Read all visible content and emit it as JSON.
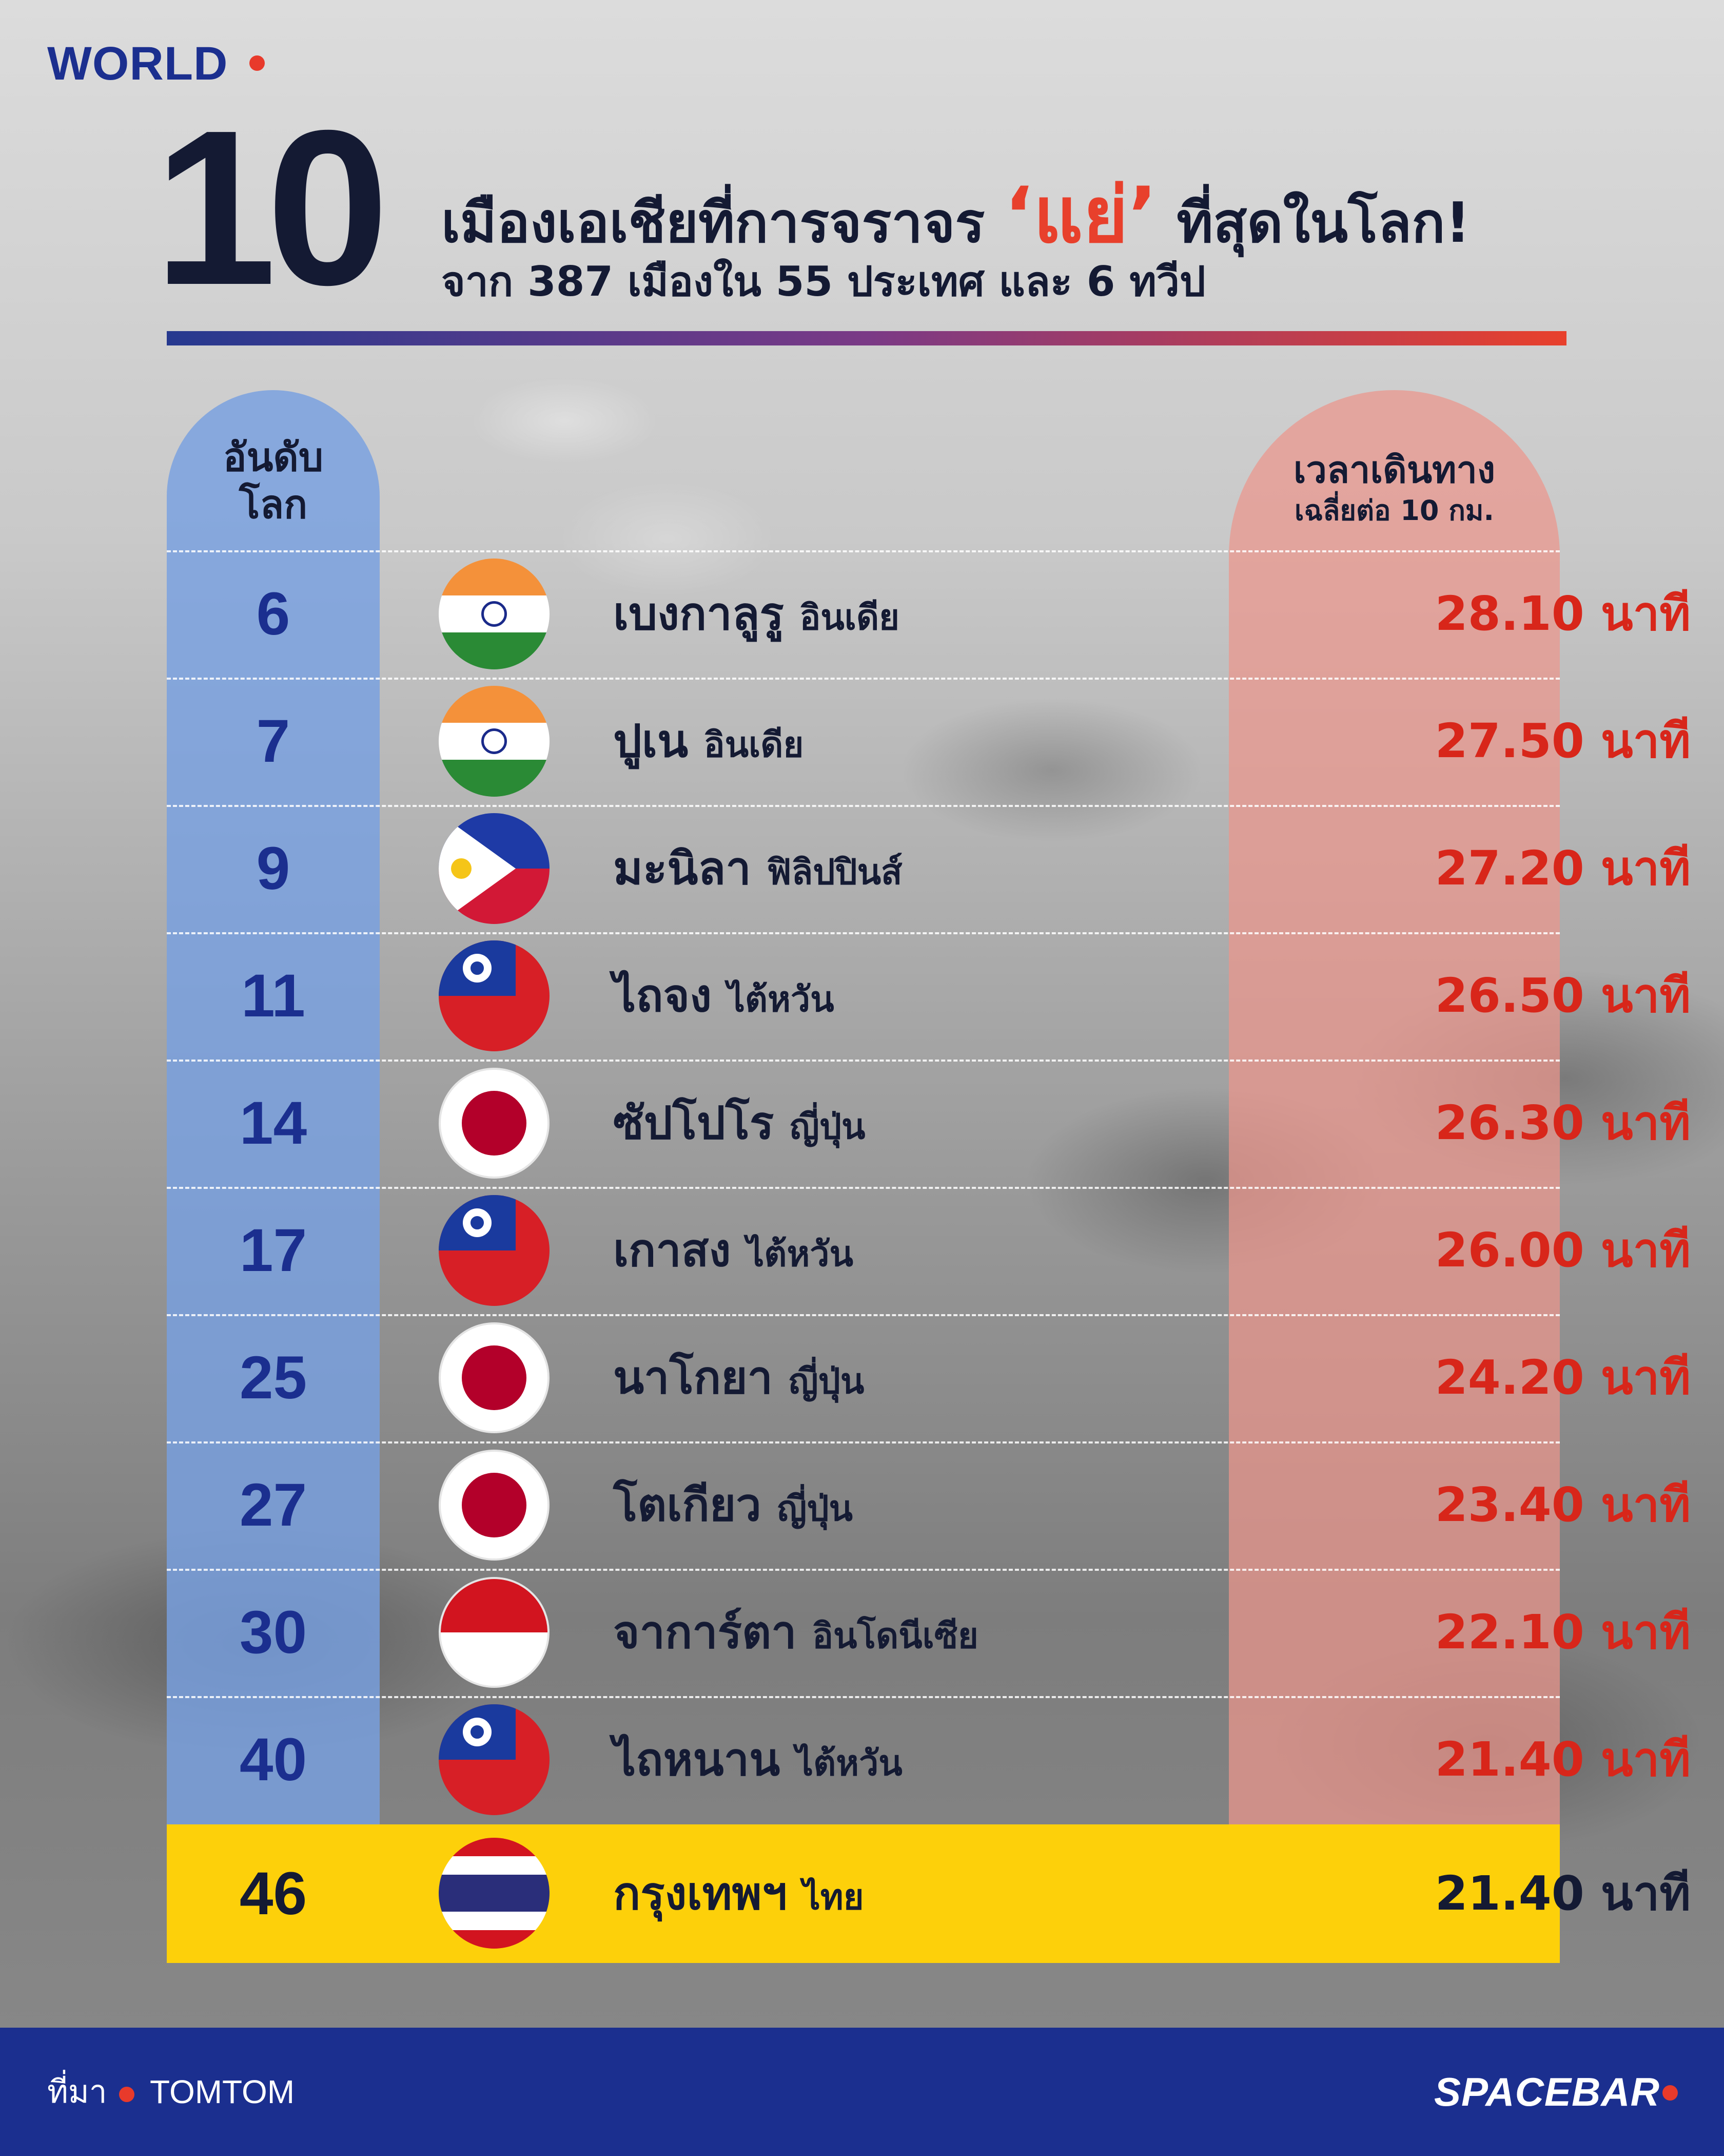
{
  "header": {
    "section_label": "WORLD",
    "big_number": "10",
    "headline_before": "เมืองเอเชียที่การจราจร",
    "headline_accent": "‘แย่’",
    "headline_after": "ที่สุดในโลก!",
    "subheadline": "จาก 387 เมืองใน 55 ประเทศ และ 6 ทวีป"
  },
  "table": {
    "rank_header": [
      "อันดับ",
      "โลก"
    ],
    "time_header": [
      "เวลาเดินทาง",
      "เฉลี่ยต่อ 10 กม."
    ],
    "rows": [
      {
        "rank": "6",
        "flag": "india-flag",
        "city": "เบงกาลูรู",
        "country": "อินเดีย",
        "time": "28.10 นาที"
      },
      {
        "rank": "7",
        "flag": "india-flag",
        "city": "ปูเน",
        "country": "อินเดีย",
        "time": "27.50 นาที"
      },
      {
        "rank": "9",
        "flag": "philippines-flag",
        "city": "มะนิลา",
        "country": "ฟิลิปปินส์",
        "time": "27.20 นาที"
      },
      {
        "rank": "11",
        "flag": "taiwan-flag",
        "city": "ไถจง",
        "country": "ไต้หวัน",
        "time": "26.50 นาที"
      },
      {
        "rank": "14",
        "flag": "japan-flag",
        "city": "ซัปโปโร",
        "country": "ญี่ปุ่น",
        "time": "26.30 นาที"
      },
      {
        "rank": "17",
        "flag": "taiwan-flag",
        "city": "เกาสง",
        "country": "ไต้หวัน",
        "time": "26.00 นาที"
      },
      {
        "rank": "25",
        "flag": "japan-flag",
        "city": "นาโกยา",
        "country": "ญี่ปุ่น",
        "time": "24.20 นาที"
      },
      {
        "rank": "27",
        "flag": "japan-flag",
        "city": "โตเกียว",
        "country": "ญี่ปุ่น",
        "time": "23.40 นาที"
      },
      {
        "rank": "30",
        "flag": "indonesia-flag",
        "city": "จาการ์ตา",
        "country": "อินโดนีเซีย",
        "time": "22.10 นาที"
      },
      {
        "rank": "40",
        "flag": "taiwan-flag",
        "city": "ไถหนาน",
        "country": "ไต้หวัน",
        "time": "21.40 นาที"
      }
    ],
    "highlight_row": {
      "rank": "46",
      "flag": "thailand-flag",
      "city": "กรุงเทพฯ",
      "country": "ไทย",
      "time": "21.40 นาที"
    }
  },
  "footer": {
    "source_label": "ที่มา",
    "source_name": "TOMTOM",
    "brand": "SPACEBAR"
  },
  "colors": {
    "brand_blue": "#1b2f8f",
    "accent_red": "#e8402c",
    "time_red": "#d8261a",
    "highlight_yellow": "#fdd00a",
    "rank_column": "#78a0e1",
    "time_column": "#eb968c"
  }
}
